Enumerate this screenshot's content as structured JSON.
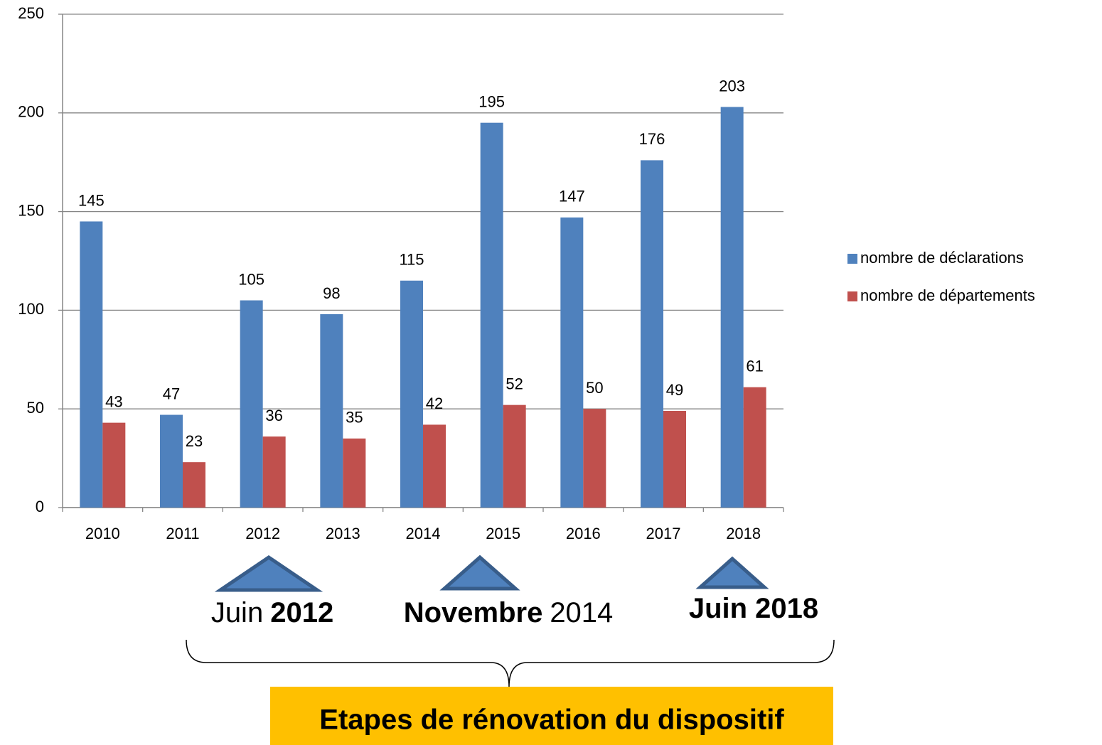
{
  "chart_data": {
    "type": "bar",
    "categories": [
      "2010",
      "2011",
      "2012",
      "2013",
      "2014",
      "2015",
      "2016",
      "2017",
      "2018"
    ],
    "series": [
      {
        "name": "nombre de déclarations",
        "color": "#4f81bd",
        "values": [
          145,
          47,
          105,
          98,
          115,
          195,
          147,
          176,
          203
        ]
      },
      {
        "name": "nombre de  départements",
        "color": "#c0504d",
        "values": [
          43,
          23,
          36,
          35,
          42,
          52,
          50,
          49,
          61
        ]
      }
    ],
    "ylim": [
      0,
      250
    ],
    "yticks": [
      0,
      50,
      100,
      150,
      200,
      250
    ],
    "grid": true,
    "legend": "right",
    "annotations": [
      {
        "parts": [
          {
            "text": "Juin",
            "bold": false
          },
          {
            "text": "2012",
            "bold": true
          }
        ]
      },
      {
        "parts": [
          {
            "text": "Novembre",
            "bold": true
          },
          {
            "text": "2014",
            "bold": false
          }
        ]
      },
      {
        "parts": [
          {
            "text": "Juin 2018",
            "bold": true
          }
        ]
      }
    ],
    "bracket_label": "Etapes de rénovation du dispositif"
  }
}
